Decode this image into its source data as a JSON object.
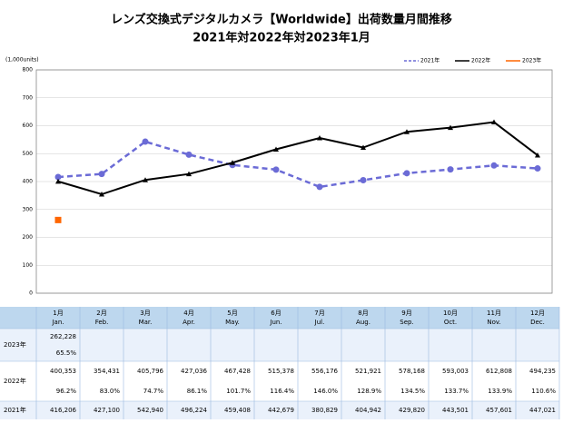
{
  "chart_data": {
    "type": "line",
    "title": "レンズ交換式デジタルカメラ【Worldwide】出荷数量月間推移",
    "subtitle": "2021年対2022年対2023年1月",
    "y_label": "(1,000units)",
    "categories": [
      "1月",
      "2月",
      "3月",
      "4月",
      "5月",
      "6月",
      "7月",
      "8月",
      "9月",
      "10月",
      "11月",
      "12月"
    ],
    "categories_en": [
      "Jan.",
      "Feb.",
      "Mar.",
      "Apr.",
      "May.",
      "Jun.",
      "Jul.",
      "Aug.",
      "Sep.",
      "Oct.",
      "Nov.",
      "Dec."
    ],
    "ylim": [
      0,
      800
    ],
    "yticks": [
      0,
      100,
      200,
      300,
      400,
      500,
      600,
      700,
      800
    ],
    "grid": true,
    "legend": "top-right",
    "series": [
      {
        "name": "2021年",
        "color": "#6b6bd6",
        "dashed": true,
        "marker": "circle",
        "values": [
          416.206,
          427.1,
          542.94,
          496.224,
          459.408,
          442.679,
          380.829,
          404.942,
          429.82,
          443.501,
          457.601,
          447.021
        ],
        "value_labels": [
          "416,206",
          "427,100",
          "542,940",
          "496,224",
          "459,408",
          "442,679",
          "380,829",
          "404,942",
          "429,820",
          "443,501",
          "457,601",
          "447,021"
        ]
      },
      {
        "name": "2022年",
        "color": "#000000",
        "dashed": false,
        "marker": "triangle",
        "values": [
          400.353,
          354.431,
          405.796,
          427.036,
          467.428,
          515.378,
          556.176,
          521.921,
          578.168,
          593.003,
          612.808,
          494.235
        ],
        "value_labels": [
          "400,353",
          "354,431",
          "405,796",
          "427,036",
          "467,428",
          "515,378",
          "556,176",
          "521,921",
          "578,168",
          "593,003",
          "612,808",
          "494,235"
        ],
        "ratios": [
          "96.2%",
          "83.0%",
          "74.7%",
          "86.1%",
          "101.7%",
          "116.4%",
          "146.0%",
          "128.9%",
          "134.5%",
          "133.7%",
          "133.9%",
          "110.6%"
        ]
      },
      {
        "name": "2023年",
        "color": "#ff6600",
        "dashed": false,
        "marker": "square",
        "values": [
          262.228,
          null,
          null,
          null,
          null,
          null,
          null,
          null,
          null,
          null,
          null,
          null
        ],
        "value_labels": [
          "262,228",
          null,
          null,
          null,
          null,
          null,
          null,
          null,
          null,
          null,
          null,
          null
        ],
        "ratios": [
          "65.5%",
          null,
          null,
          null,
          null,
          null,
          null,
          null,
          null,
          null,
          null,
          null
        ]
      }
    ]
  }
}
